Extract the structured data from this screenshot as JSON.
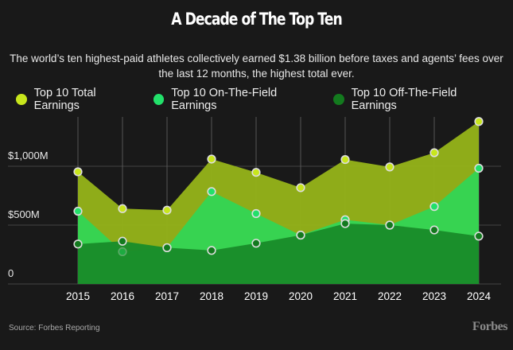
{
  "chart_data": {
    "type": "area",
    "title": "A Decade of The Top Ten",
    "subtitle": "The world’s ten highest-paid athletes collectively earned $1.38 billion before taxes and agents’ fees over the last 12 months, the highest total ever.",
    "categories": [
      "2015",
      "2016",
      "2017",
      "2018",
      "2019",
      "2020",
      "2021",
      "2022",
      "2023",
      "2024"
    ],
    "series": [
      {
        "name": "Top 10 Total Earnings",
        "color": "#c8e61c",
        "fill": "#94b21a",
        "values": [
          953,
          640,
          627,
          1061,
          948,
          818,
          1057,
          994,
          1115,
          1380
        ]
      },
      {
        "name": "Top 10 On-The-Field Earnings",
        "color": "#22e06a",
        "fill": "#34d454",
        "values": [
          618,
          274,
          308,
          785,
          598,
          415,
          546,
          500,
          658,
          983
        ]
      },
      {
        "name": "Top 10 Off-The-Field Earnings",
        "color": "#137a1e",
        "fill": "#1a8c2a",
        "values": [
          339,
          363,
          308,
          285,
          346,
          415,
          513,
          500,
          459,
          406
        ]
      }
    ],
    "y_ticks": [
      {
        "value": 0,
        "label": "0"
      },
      {
        "value": 500,
        "label": "$500M"
      },
      {
        "value": 1000,
        "label": "$1,000M"
      }
    ],
    "ylim": [
      0,
      1400
    ],
    "grid": true,
    "legend": "top",
    "source": "Source: Forbes Reporting",
    "logo": "Forbes"
  }
}
